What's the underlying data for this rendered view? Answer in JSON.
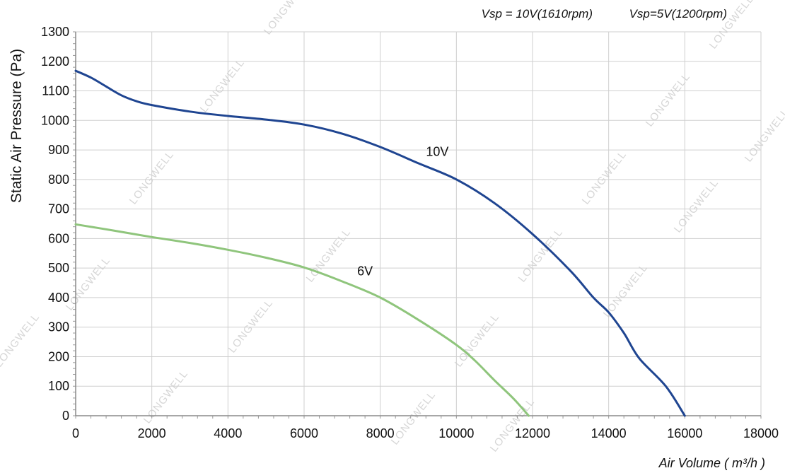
{
  "header": {
    "speed_10v": "Vsp = 10V(1610rpm)",
    "speed_5v": "Vsp=5V(1200rpm)"
  },
  "watermark": "LONGWELL",
  "colors": {
    "curve_10v": "#1f4591",
    "curve_6v": "#8fc57c",
    "grid": "#cfcfcf",
    "axis": "#8a8a8a"
  },
  "chart_data": {
    "type": "line",
    "xlabel": "Air Volume ( m³/h )",
    "ylabel": "Static Air Pressure  (Pa)",
    "xlim": [
      0,
      18000
    ],
    "ylim": [
      0,
      1300
    ],
    "x_ticks": [
      "0",
      "2000",
      "4000",
      "6000",
      "8000",
      "10000",
      "12000",
      "14000",
      "16000",
      "18000"
    ],
    "y_ticks": [
      "0",
      "100",
      "200",
      "300",
      "400",
      "500",
      "600",
      "700",
      "800",
      "900",
      "1000",
      "1100",
      "1200",
      "1300"
    ],
    "grid": true,
    "series": [
      {
        "name": "10V",
        "label_at": [
          9500,
          880
        ],
        "points": [
          [
            0,
            1168
          ],
          [
            400,
            1145
          ],
          [
            800,
            1115
          ],
          [
            1200,
            1085
          ],
          [
            1600,
            1065
          ],
          [
            2000,
            1052
          ],
          [
            3000,
            1030
          ],
          [
            4000,
            1015
          ],
          [
            5000,
            1003
          ],
          [
            6000,
            986
          ],
          [
            7000,
            955
          ],
          [
            8000,
            910
          ],
          [
            9000,
            855
          ],
          [
            10000,
            800
          ],
          [
            11000,
            720
          ],
          [
            12000,
            615
          ],
          [
            13000,
            490
          ],
          [
            13600,
            400
          ],
          [
            14000,
            350
          ],
          [
            14400,
            280
          ],
          [
            14800,
            195
          ],
          [
            15500,
            100
          ],
          [
            16000,
            0
          ]
        ]
      },
      {
        "name": "6V",
        "label_at": [
          7600,
          475
        ],
        "points": [
          [
            0,
            648
          ],
          [
            1000,
            627
          ],
          [
            2000,
            605
          ],
          [
            3000,
            585
          ],
          [
            4000,
            562
          ],
          [
            5000,
            535
          ],
          [
            6000,
            502
          ],
          [
            7000,
            455
          ],
          [
            8000,
            400
          ],
          [
            9000,
            325
          ],
          [
            10000,
            240
          ],
          [
            10500,
            185
          ],
          [
            11000,
            120
          ],
          [
            11500,
            58
          ],
          [
            11900,
            0
          ]
        ]
      }
    ]
  }
}
